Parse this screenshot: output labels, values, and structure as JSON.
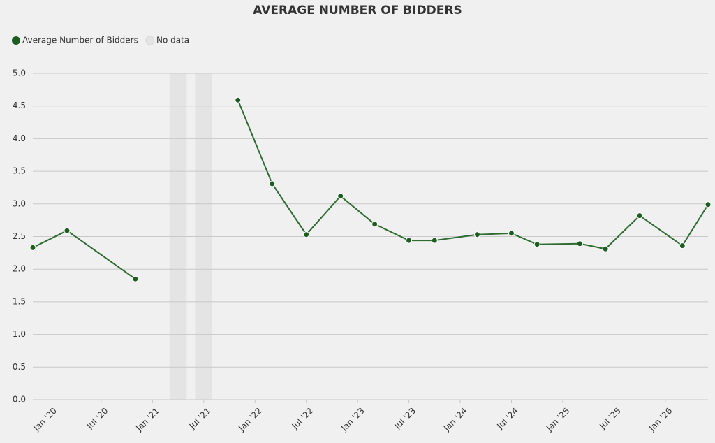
{
  "chart_data": {
    "type": "line",
    "title": "AVERAGE NUMBER OF BIDDERS",
    "x": [
      "2019-11",
      "2020-03",
      "2020-11",
      "2021-04",
      "2021-11",
      "2022-03",
      "2022-07",
      "2022-11",
      "2023-03",
      "2023-07",
      "2023-10",
      "2024-03",
      "2024-07",
      "2024-10",
      "2025-03",
      "2025-06",
      "2025-10",
      "2026-03",
      "2026-06"
    ],
    "series": [
      {
        "name": "Average Number of Bidders",
        "color": "#2e6b30",
        "marker_color": "#1b5e20",
        "values": [
          2.33,
          2.59,
          1.85,
          null,
          4.59,
          3.31,
          2.53,
          3.12,
          2.69,
          2.44,
          2.44,
          2.53,
          2.55,
          2.38,
          2.39,
          2.31,
          2.82,
          2.36,
          2.99
        ]
      }
    ],
    "no_data": {
      "label": "No data",
      "color": "#e4e4e4",
      "ranges": [
        [
          "2021-03",
          "2021-05"
        ],
        [
          "2021-06",
          "2021-08"
        ]
      ]
    },
    "xlim": [
      "2019-11",
      "2026-06"
    ],
    "xticks": [
      {
        "value": "2020-01",
        "label": "Jan '20"
      },
      {
        "value": "2020-07",
        "label": "Jul '20"
      },
      {
        "value": "2021-01",
        "label": "Jan '21"
      },
      {
        "value": "2021-07",
        "label": "Jul '21"
      },
      {
        "value": "2022-01",
        "label": "Jan '22"
      },
      {
        "value": "2022-07",
        "label": "Jul '22"
      },
      {
        "value": "2023-01",
        "label": "Jan '23"
      },
      {
        "value": "2023-07",
        "label": "Jul '23"
      },
      {
        "value": "2024-01",
        "label": "Jan '24"
      },
      {
        "value": "2024-07",
        "label": "Jul '24"
      },
      {
        "value": "2025-01",
        "label": "Jan '25"
      },
      {
        "value": "2025-07",
        "label": "Jul '25"
      },
      {
        "value": "2026-01",
        "label": "Jan '26"
      }
    ],
    "ylim": [
      0,
      5
    ],
    "yticks": [
      {
        "value": 0,
        "label": "0.0"
      },
      {
        "value": 0.5,
        "label": "0.5"
      },
      {
        "value": 1,
        "label": "1.0"
      },
      {
        "value": 1.5,
        "label": "1.5"
      },
      {
        "value": 2,
        "label": "2.0"
      },
      {
        "value": 2.5,
        "label": "2.5"
      },
      {
        "value": 3,
        "label": "3.0"
      },
      {
        "value": 3.5,
        "label": "3.5"
      },
      {
        "value": 4,
        "label": "4.0"
      },
      {
        "value": 4.5,
        "label": "4.5"
      },
      {
        "value": 5,
        "label": "5.0"
      }
    ],
    "grid": true
  }
}
